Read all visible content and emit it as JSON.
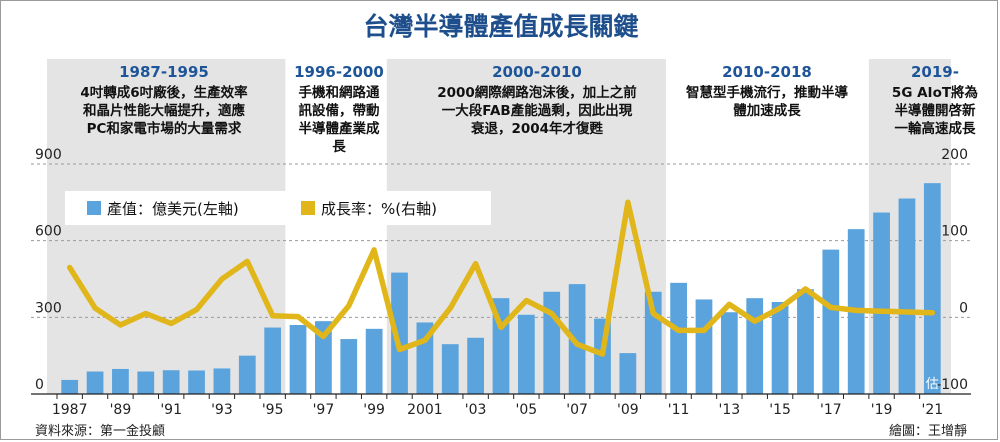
{
  "title": "台灣半導體產值成長關鍵",
  "periods": [
    {
      "label": "1987-1995",
      "lines": [
        "4吋轉成6吋廠後，生產效率",
        "和晶片性能大幅提升，適應",
        "PC和家電市場的大量需求"
      ]
    },
    {
      "label": "1996-2000",
      "lines": [
        "手機和網路通",
        "訊設備，帶動",
        "半導體產業成",
        "長"
      ]
    },
    {
      "label": "2000-2010",
      "lines": [
        "2000網際網路泡沫後，加上之前",
        "一大段FAB產能過剩，因此出現",
        "衰退，2004年才復甦"
      ]
    },
    {
      "label": "2010-2018",
      "lines": [
        "智慧型手機流行，推動半導",
        "體加速成長"
      ]
    },
    {
      "label": "2019-",
      "lines": [
        "5G AIoT將為",
        "半導體開啓新",
        "一輪高速成長"
      ]
    }
  ],
  "legend": {
    "value": "產值：億美元(左軸)",
    "growth": "成長率：%(右軸)"
  },
  "estimate_mark": "估",
  "source": "資料來源：第一金投顧",
  "credit": "繪圖：王增靜",
  "colors": {
    "bar": "#5ba3dc",
    "line": "#e0b61a",
    "band": "#e4e4e4",
    "title": "#1e4f8c",
    "period": "#1e5598"
  },
  "chart_data": {
    "type": "bar",
    "x": [
      1987,
      1988,
      1989,
      1990,
      1991,
      1992,
      1993,
      1994,
      1995,
      1996,
      1997,
      1998,
      1999,
      2000,
      2001,
      2002,
      2003,
      2004,
      2005,
      2006,
      2007,
      2008,
      2009,
      2010,
      2011,
      2012,
      2013,
      2014,
      2015,
      2016,
      2017,
      2018,
      2019,
      2020,
      2021
    ],
    "x_tick_labels": [
      "1987",
      "'89",
      "'91",
      "'93",
      "'95",
      "'97",
      "'99",
      "2001",
      "'03",
      "'05",
      "'07",
      "'09",
      "'11",
      "'13",
      "'15",
      "'17",
      "'19",
      "'21"
    ],
    "series": [
      {
        "name": "產值：億美元(左軸)",
        "axis": "left",
        "type": "bar",
        "values": [
          55,
          88,
          98,
          88,
          93,
          92,
          100,
          150,
          260,
          270,
          285,
          215,
          255,
          475,
          280,
          195,
          220,
          375,
          310,
          400,
          430,
          295,
          160,
          400,
          435,
          370,
          320,
          375,
          360,
          410,
          565,
          645,
          710,
          765,
          825
        ]
      },
      {
        "name": "成長率：%(右軸)",
        "axis": "right",
        "type": "line",
        "values": [
          65,
          12,
          -10,
          5,
          -8,
          10,
          50,
          73,
          2,
          1,
          -25,
          15,
          88,
          -42,
          -30,
          12,
          70,
          -13,
          22,
          5,
          -35,
          -48,
          150,
          5,
          -17,
          -17,
          17,
          -5,
          12,
          37,
          13,
          9,
          8,
          7,
          6
        ]
      }
    ],
    "y_left": {
      "ticks": [
        0,
        300,
        600,
        900
      ],
      "ylim": [
        0,
        900
      ]
    },
    "y_right": {
      "ticks": [
        -100,
        0,
        100,
        200
      ],
      "ylim": [
        -100,
        200
      ]
    },
    "estimate_year": 2021,
    "period_bands": [
      [
        1987,
        1995
      ],
      [
        2000,
        2010
      ],
      [
        2019,
        2021
      ]
    ]
  }
}
